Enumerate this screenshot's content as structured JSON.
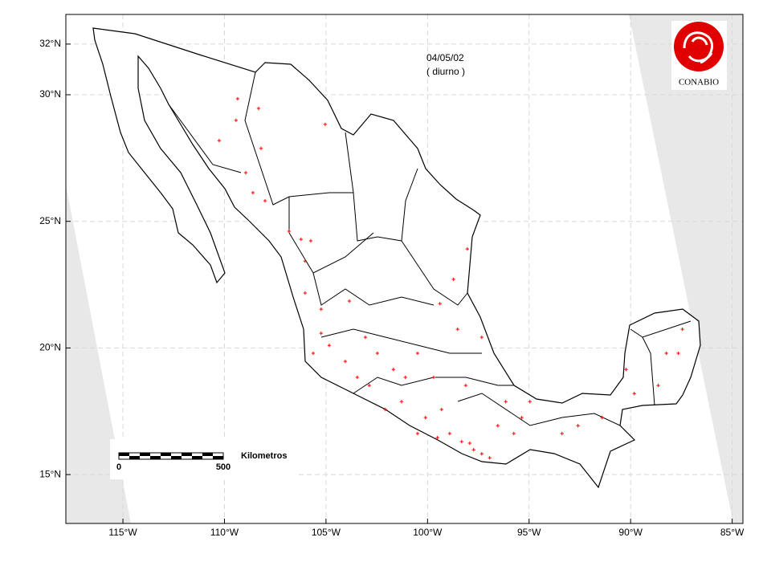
{
  "chart_data": {
    "type": "scatter",
    "date": "04/05/02",
    "subtitle": "( diurno )",
    "logo": "CONABIO",
    "scale_bar": {
      "labels": [
        "0",
        "500"
      ],
      "unit": "Kilometros"
    },
    "xlim": [
      -117.81,
      -84.47
    ],
    "ylim": [
      13.07,
      33.17
    ],
    "xticks": [
      {
        "value": -115,
        "label": "115°W"
      },
      {
        "value": -110,
        "label": "110°W"
      },
      {
        "value": -105,
        "label": "105°W"
      },
      {
        "value": -100,
        "label": "100°W"
      },
      {
        "value": -95,
        "label": "95°W"
      },
      {
        "value": -90,
        "label": "90°W"
      },
      {
        "value": -85,
        "label": "85°W"
      }
    ],
    "yticks": [
      {
        "value": 15,
        "label": "15°N"
      },
      {
        "value": 20,
        "label": "20°N"
      },
      {
        "value": 25,
        "label": "25°N"
      },
      {
        "value": 30,
        "label": "30°N"
      },
      {
        "value": 32,
        "label": "32°N"
      }
    ],
    "grid": true,
    "color": "#ff0000",
    "x": [
      -109.35,
      -108.32,
      -109.43,
      -110.26,
      -108.2,
      -105.04,
      -108.95,
      -108.6,
      -108.0,
      -106.82,
      -106.23,
      -105.75,
      -106.03,
      -98.04,
      -98.72,
      -99.39,
      -106.03,
      -105.24,
      -103.85,
      -104.84,
      -104.05,
      -103.46,
      -102.47,
      -101.68,
      -101.09,
      -100.49,
      -101.28,
      -102.08,
      -100.1,
      -99.31,
      -98.91,
      -98.32,
      -97.73,
      -96.94,
      -96.54,
      -95.75,
      -94.96,
      -93.38,
      -92.59,
      -91.4,
      -90.22,
      -89.82,
      -88.24,
      -87.45,
      -87.65,
      -88.64,
      -97.33,
      -98.52,
      -105.63,
      -102.87,
      -99.7,
      -98.12,
      -96.15,
      -95.36,
      -100.49,
      -99.51,
      -97.33,
      -97.92,
      -105.24,
      -103.06
    ],
    "y": [
      29.84,
      29.46,
      28.99,
      28.19,
      27.88,
      28.83,
      26.92,
      26.13,
      25.81,
      24.61,
      24.29,
      24.23,
      23.43,
      23.91,
      22.71,
      21.75,
      22.17,
      21.53,
      21.85,
      20.1,
      19.47,
      18.84,
      19.79,
      19.15,
      18.84,
      19.79,
      17.88,
      17.57,
      17.25,
      17.57,
      16.62,
      16.3,
      15.98,
      15.66,
      16.93,
      16.62,
      17.88,
      16.62,
      16.93,
      17.25,
      19.15,
      18.2,
      19.79,
      20.74,
      19.79,
      18.52,
      20.42,
      20.74,
      19.79,
      18.52,
      18.84,
      18.52,
      17.88,
      17.25,
      16.62,
      16.46,
      15.82,
      16.24,
      20.58,
      20.42
    ]
  }
}
